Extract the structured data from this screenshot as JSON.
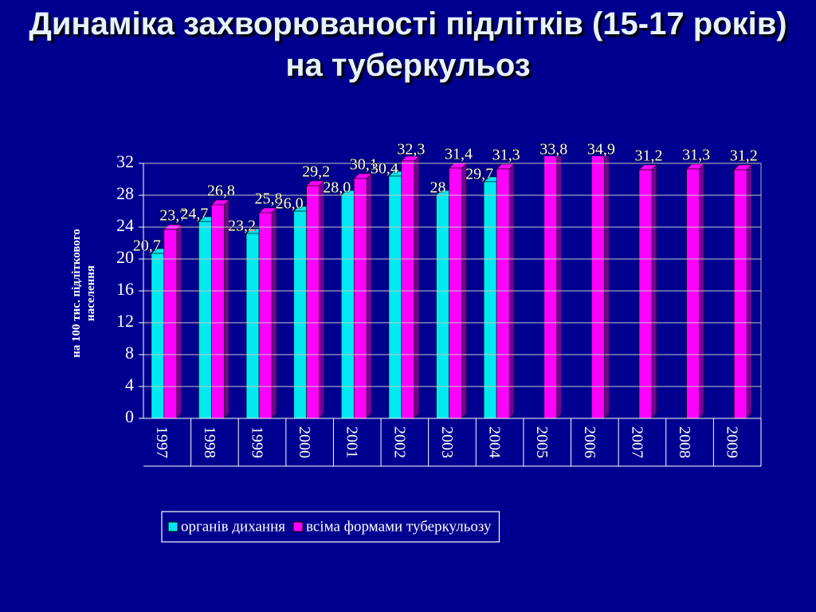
{
  "chart_data": {
    "type": "bar",
    "title": "Динаміка захворюваності підлітків (15-17 років) на туберкульоз",
    "y_label": "на 100 тис. підліткового населення",
    "categories": [
      "1997",
      "1998",
      "1999",
      "2000",
      "2001",
      "2002",
      "2003",
      "2004",
      "2005",
      "2006",
      "2007",
      "2008",
      "2009"
    ],
    "series": [
      {
        "name": "органів дихання",
        "color": "#00e8f0",
        "values": [
          20.7,
          24.7,
          23.2,
          26.0,
          28.0,
          30.4,
          28,
          29.7,
          null,
          null,
          null,
          null,
          null
        ],
        "value_labels": [
          "20,7",
          "24,7",
          "23,2",
          "26,0",
          "28,0",
          "30,4",
          "28",
          "29,7",
          null,
          null,
          null,
          null,
          null
        ]
      },
      {
        "name": "всіма формами туберкульозу",
        "color": "#ff00ff",
        "values": [
          23.7,
          26.8,
          25.8,
          29.2,
          30.1,
          32.3,
          31.4,
          31.3,
          33.8,
          34.9,
          31.2,
          31.3,
          31.2
        ],
        "value_labels": [
          "23,7",
          "26,8",
          "25,8",
          "29,2",
          "30,1",
          "32,3",
          "31,4",
          "31,3",
          "33,8",
          "34,9",
          "31,2",
          "31,3",
          "31,2"
        ]
      }
    ],
    "ylim": [
      0,
      32
    ],
    "yticks": [
      0,
      4,
      8,
      12,
      16,
      20,
      24,
      28,
      32
    ],
    "grid": true,
    "legend": "bottom"
  }
}
